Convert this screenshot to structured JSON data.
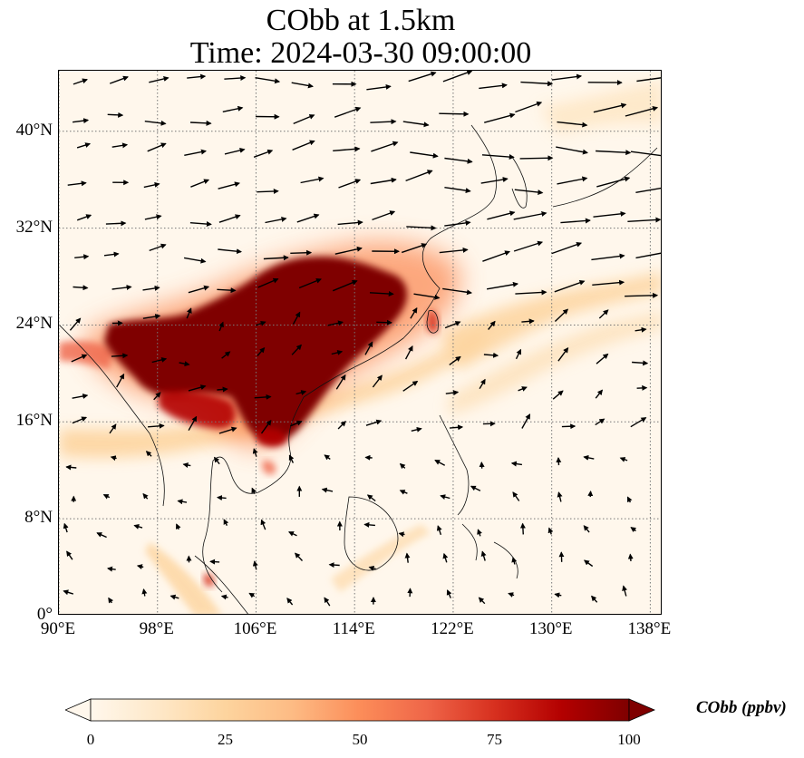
{
  "title": {
    "line1": "CObb at 1.5km",
    "line2": "Time: 2024-03-30 09:00:00"
  },
  "map": {
    "variable": "CObb",
    "height": "1.5km",
    "lon_range": [
      90,
      139
    ],
    "lat_range": [
      0,
      45
    ],
    "lat_ticks": [
      {
        "value": 0,
        "label": "0°"
      },
      {
        "value": 8,
        "label": "8°N"
      },
      {
        "value": 16,
        "label": "16°N"
      },
      {
        "value": 24,
        "label": "24°N"
      },
      {
        "value": 32,
        "label": "32°N"
      },
      {
        "value": 40,
        "label": "40°N"
      }
    ],
    "lon_ticks": [
      {
        "value": 90,
        "label": "90°E"
      },
      {
        "value": 98,
        "label": "98°E"
      },
      {
        "value": 106,
        "label": "106°E"
      },
      {
        "value": 114,
        "label": "114°E"
      },
      {
        "value": 122,
        "label": "122°E"
      },
      {
        "value": 130,
        "label": "130°E"
      },
      {
        "value": 138,
        "label": "138°E"
      }
    ],
    "gridlines": true,
    "wind_vectors": true,
    "coastlines": true,
    "background_color": "#fff7ec"
  },
  "colorbar": {
    "label": "CObb (ppbv)",
    "min": 0,
    "max": 100,
    "extend": "both",
    "ticks": [
      {
        "value": 0,
        "label": "0"
      },
      {
        "value": 25,
        "label": "25"
      },
      {
        "value": 50,
        "label": "50"
      },
      {
        "value": 75,
        "label": "75"
      },
      {
        "value": 100,
        "label": "100"
      }
    ],
    "colors": [
      "#fff7ec",
      "#fee8c8",
      "#fdd49e",
      "#fdbb84",
      "#fc8d59",
      "#ef6548",
      "#d7301f",
      "#b30000",
      "#7f0000"
    ]
  }
}
